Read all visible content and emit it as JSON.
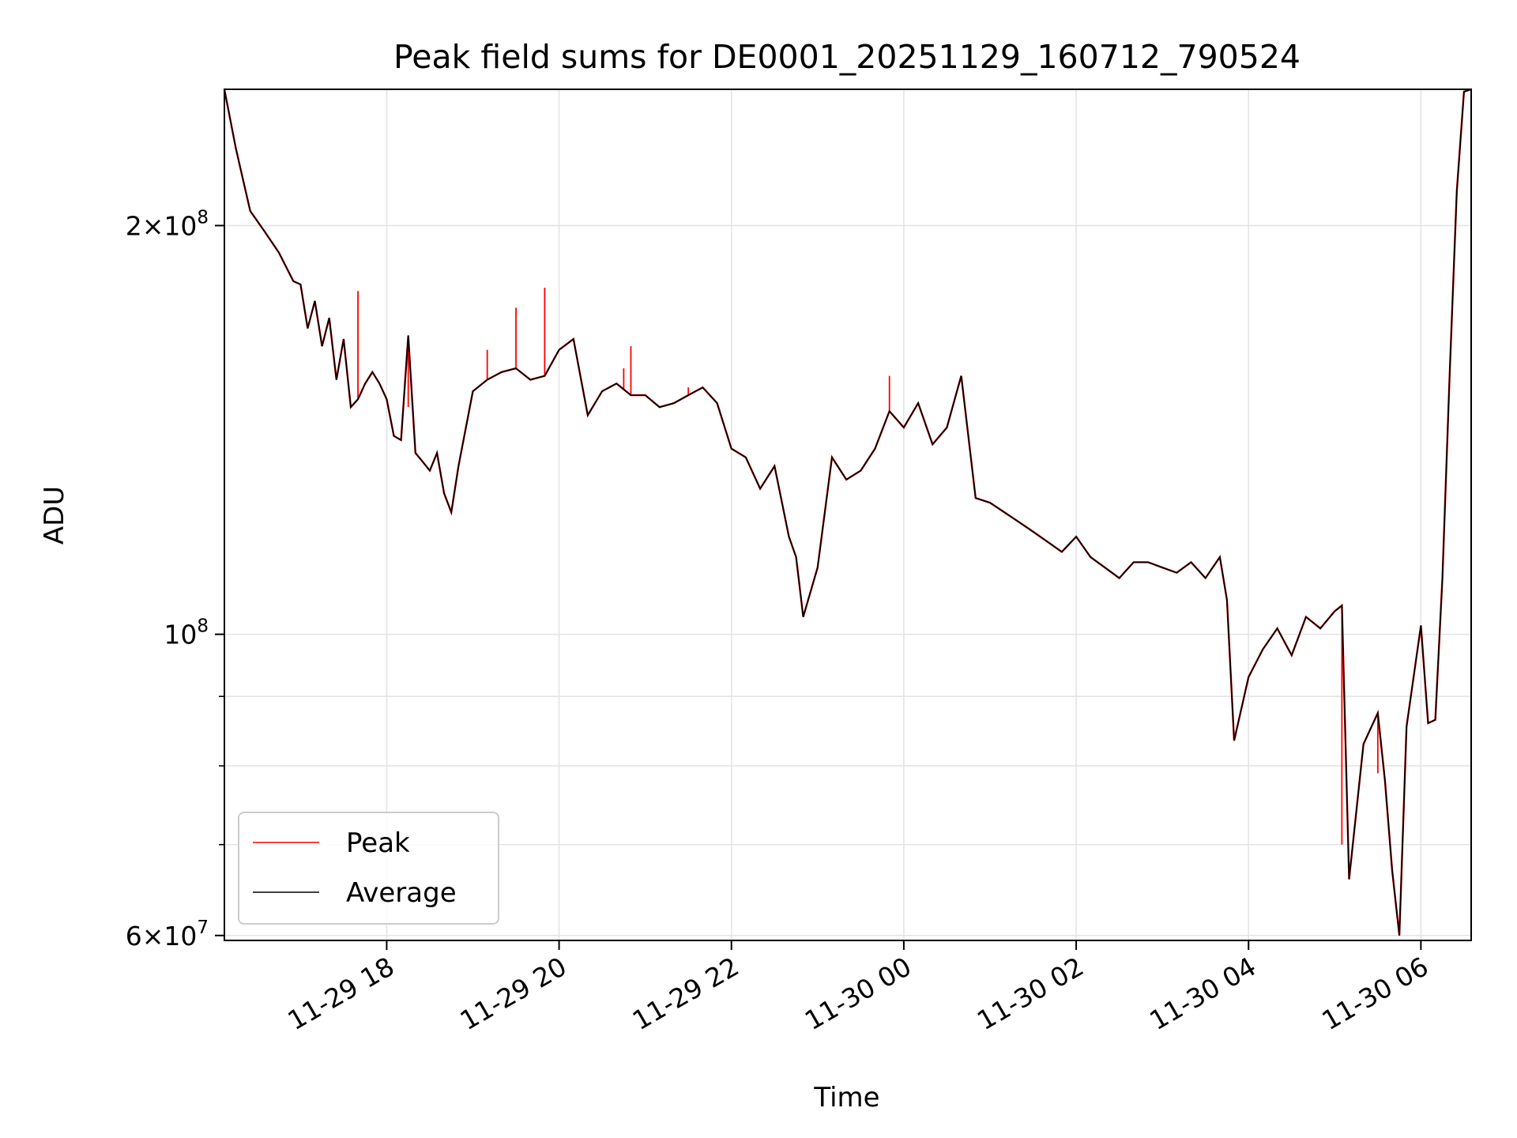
{
  "chart_data": {
    "type": "line",
    "title": "Peak field sums for DE0001_20251129_160712_790524",
    "xlabel": "Time",
    "ylabel": "ADU",
    "yscale": "log",
    "ylim": [
      59500000,
      252000000
    ],
    "xlim": [
      "2025-11-29 16:07",
      "2025-11-30 06:35"
    ],
    "grid": true,
    "legend": "lower-left",
    "x_ticks": [
      "11-29 18",
      "11-29 20",
      "11-29 22",
      "11-30 00",
      "11-30 02",
      "11-30 04",
      "11-30 06"
    ],
    "x_tick_times": [
      "2025-11-29 18:00",
      "2025-11-29 20:00",
      "2025-11-29 22:00",
      "2025-11-30 00:00",
      "2025-11-30 02:00",
      "2025-11-30 04:00",
      "2025-11-30 06:00"
    ],
    "y_ticks": [
      {
        "base": "2",
        "exp": "8",
        "value": 200000000
      },
      {
        "base": "",
        "exp": "8",
        "value": 100000000
      },
      {
        "base": "6",
        "exp": "7",
        "value": 60000000
      }
    ],
    "y_minor_ticks": [
      70000000,
      80000000,
      90000000
    ],
    "series": [
      {
        "name": "Peak",
        "color": "#ff0000"
      },
      {
        "name": "Average",
        "color": "#000000"
      }
    ],
    "x": [
      "2025-11-29 16:07",
      "2025-11-29 16:15",
      "2025-11-29 16:25",
      "2025-11-29 16:35",
      "2025-11-29 16:45",
      "2025-11-29 16:55",
      "2025-11-29 17:00",
      "2025-11-29 17:05",
      "2025-11-29 17:10",
      "2025-11-29 17:15",
      "2025-11-29 17:20",
      "2025-11-29 17:25",
      "2025-11-29 17:30",
      "2025-11-29 17:35",
      "2025-11-29 17:40",
      "2025-11-29 17:45",
      "2025-11-29 17:50",
      "2025-11-29 17:55",
      "2025-11-29 18:00",
      "2025-11-29 18:05",
      "2025-11-29 18:10",
      "2025-11-29 18:15",
      "2025-11-29 18:20",
      "2025-11-29 18:25",
      "2025-11-29 18:30",
      "2025-11-29 18:35",
      "2025-11-29 18:40",
      "2025-11-29 18:45",
      "2025-11-29 18:50",
      "2025-11-29 19:00",
      "2025-11-29 19:10",
      "2025-11-29 19:20",
      "2025-11-29 19:30",
      "2025-11-29 19:40",
      "2025-11-29 19:50",
      "2025-11-29 20:00",
      "2025-11-29 20:10",
      "2025-11-29 20:20",
      "2025-11-29 20:30",
      "2025-11-29 20:40",
      "2025-11-29 20:50",
      "2025-11-29 21:00",
      "2025-11-29 21:10",
      "2025-11-29 21:20",
      "2025-11-29 21:30",
      "2025-11-29 21:40",
      "2025-11-29 21:50",
      "2025-11-29 22:00",
      "2025-11-29 22:10",
      "2025-11-29 22:20",
      "2025-11-29 22:30",
      "2025-11-29 22:40",
      "2025-11-29 22:45",
      "2025-11-29 22:50",
      "2025-11-29 23:00",
      "2025-11-29 23:10",
      "2025-11-29 23:20",
      "2025-11-29 23:30",
      "2025-11-29 23:40",
      "2025-11-29 23:50",
      "2025-11-30 00:00",
      "2025-11-30 00:10",
      "2025-11-30 00:20",
      "2025-11-30 00:30",
      "2025-11-30 00:40",
      "2025-11-30 00:50",
      "2025-11-30 01:00",
      "2025-11-30 01:10",
      "2025-11-30 01:20",
      "2025-11-30 01:30",
      "2025-11-30 01:40",
      "2025-11-30 01:50",
      "2025-11-30 02:00",
      "2025-11-30 02:10",
      "2025-11-30 02:20",
      "2025-11-30 02:30",
      "2025-11-30 02:40",
      "2025-11-30 02:50",
      "2025-11-30 03:00",
      "2025-11-30 03:10",
      "2025-11-30 03:20",
      "2025-11-30 03:30",
      "2025-11-30 03:40",
      "2025-11-30 03:45",
      "2025-11-30 03:50",
      "2025-11-30 04:00",
      "2025-11-30 04:10",
      "2025-11-30 04:20",
      "2025-11-30 04:30",
      "2025-11-30 04:40",
      "2025-11-30 04:50",
      "2025-11-30 05:00",
      "2025-11-30 05:05",
      "2025-11-30 05:10",
      "2025-11-30 05:20",
      "2025-11-30 05:30",
      "2025-11-30 05:35",
      "2025-11-30 05:40",
      "2025-11-30 05:45",
      "2025-11-30 05:50",
      "2025-11-30 06:00",
      "2025-11-30 06:05",
      "2025-11-30 06:10",
      "2025-11-30 06:15",
      "2025-11-30 06:20",
      "2025-11-30 06:25",
      "2025-11-30 06:30",
      "2025-11-30 06:35"
    ],
    "average": [
      252000000,
      228000000,
      205000000,
      198000000,
      191000000,
      182000000,
      181000000,
      168000000,
      176000000,
      163000000,
      171000000,
      154000000,
      165000000,
      147000000,
      149000000,
      153000000,
      156000000,
      153000000,
      149000000,
      140000000,
      139000000,
      166000000,
      136000000,
      134000000,
      132000000,
      136000000,
      127000000,
      123000000,
      133000000,
      151000000,
      154000000,
      156000000,
      157000000,
      154000000,
      155000000,
      162000000,
      165000000,
      145000000,
      151000000,
      153000000,
      150000000,
      150000000,
      147000000,
      148000000,
      150000000,
      152000000,
      148000000,
      137000000,
      135000000,
      128000000,
      133000000,
      118000000,
      114000000,
      103000000,
      112000000,
      135000000,
      130000000,
      132000000,
      137000000,
      146000000,
      142000000,
      148000000,
      138000000,
      142000000,
      155000000,
      126000000,
      125000000,
      123000000,
      121000000,
      119000000,
      117000000,
      115000000,
      118000000,
      114000000,
      112000000,
      110000000,
      113000000,
      113000000,
      112000000,
      111000000,
      113000000,
      110000000,
      114000000,
      106000000,
      83500000,
      93000000,
      97500000,
      101000000,
      96500000,
      103000000,
      101000000,
      104000000,
      105000000,
      66000000,
      83000000,
      87500000,
      78000000,
      67000000,
      60000000,
      85500000,
      101500000,
      86000000,
      86500000,
      110000000,
      155000000,
      212000000,
      251000000,
      252000000
    ],
    "peak_spikes": [
      {
        "x": "2025-11-29 17:40",
        "value": 179000000
      },
      {
        "x": "2025-11-29 18:15",
        "value": 147000000
      },
      {
        "x": "2025-11-29 19:10",
        "value": 162000000
      },
      {
        "x": "2025-11-29 19:30",
        "value": 174000000
      },
      {
        "x": "2025-11-29 19:50",
        "value": 180000000
      },
      {
        "x": "2025-11-29 20:45",
        "value": 157000000
      },
      {
        "x": "2025-11-29 20:50",
        "value": 163000000
      },
      {
        "x": "2025-11-29 21:30",
        "value": 152000000
      },
      {
        "x": "2025-11-29 23:50",
        "value": 155000000
      },
      {
        "x": "2025-11-30 05:05",
        "value": 70000000
      },
      {
        "x": "2025-11-30 05:30",
        "value": 79000000
      }
    ]
  }
}
